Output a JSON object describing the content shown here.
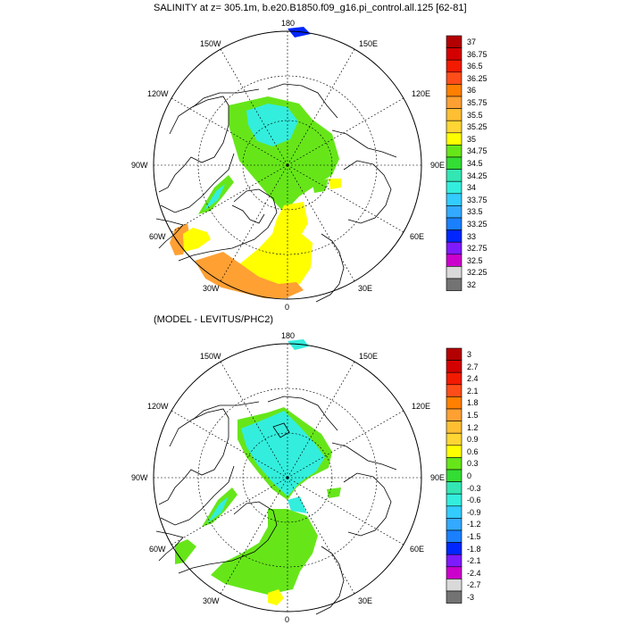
{
  "map_top": {
    "title": "SALINITY at z= 305.1m, b.e20.B1850.f09_g16.pi_control.all.125 [62-81]",
    "labels": {
      "lon180": "180",
      "lon150w": "150W",
      "lon150e": "150E",
      "lon120w": "120W",
      "lon120e": "120E",
      "lon90w": "90W",
      "lon90e": "90E",
      "lon60w": "60W",
      "lon60e": "60E",
      "lon30w": "30W",
      "lon30e": "30E",
      "lon0": "0"
    },
    "colorbar": {
      "labels": [
        "37",
        "36.75",
        "36.5",
        "36.25",
        "36",
        "35.75",
        "35.5",
        "35.25",
        "35",
        "34.75",
        "34.5",
        "34.25",
        "34",
        "33.75",
        "33.5",
        "33.25",
        "33",
        "32.75",
        "32.5",
        "32.25",
        "32"
      ],
      "colors": [
        "#b30000",
        "#d40000",
        "#f21a00",
        "#ff4d1a",
        "#ff7f00",
        "#ffa033",
        "#ffbf33",
        "#ffd633",
        "#ffff00",
        "#66e619",
        "#33dd33",
        "#33e6b3",
        "#33eedd",
        "#33ccff",
        "#33aaff",
        "#1a80ff",
        "#0026ff",
        "#7f1aff",
        "#cc00cc",
        "#d9d9d9",
        "#737373"
      ]
    }
  },
  "map_bottom": {
    "title": "(MODEL - LEVITUS/PHC2)",
    "labels": {
      "lon180": "180",
      "lon150w": "150W",
      "lon150e": "150E",
      "lon120w": "120W",
      "lon120e": "120E",
      "lon90w": "90W",
      "lon90e": "90E",
      "lon60w": "60W",
      "lon60e": "60E",
      "lon30w": "30W",
      "lon30e": "30E",
      "lon0": "0"
    },
    "colorbar": {
      "labels": [
        "3",
        "2.7",
        "2.4",
        "2.1",
        "1.8",
        "1.5",
        "1.2",
        "0.9",
        "0.6",
        "0.3",
        "0",
        "-0.3",
        "-0.6",
        "-0.9",
        "-1.2",
        "-1.5",
        "-1.8",
        "-2.1",
        "-2.4",
        "-2.7",
        "-3"
      ],
      "colors": [
        "#b30000",
        "#d40000",
        "#f21a00",
        "#ff4d1a",
        "#ff7f00",
        "#ffa033",
        "#ffbf33",
        "#ffd633",
        "#ffff00",
        "#66e619",
        "#33dd33",
        "#33e6b3",
        "#33eedd",
        "#33ccff",
        "#33aaff",
        "#1a80ff",
        "#0026ff",
        "#7f1aff",
        "#cc00cc",
        "#d9d9d9",
        "#737373"
      ]
    }
  },
  "colors": {
    "land_outline": "#000000",
    "grid": "#000000",
    "salinity_green": "#66e619",
    "salinity_cyan": "#33eedd",
    "salinity_yellow": "#ffff00",
    "salinity_orange": "#ffa033"
  }
}
